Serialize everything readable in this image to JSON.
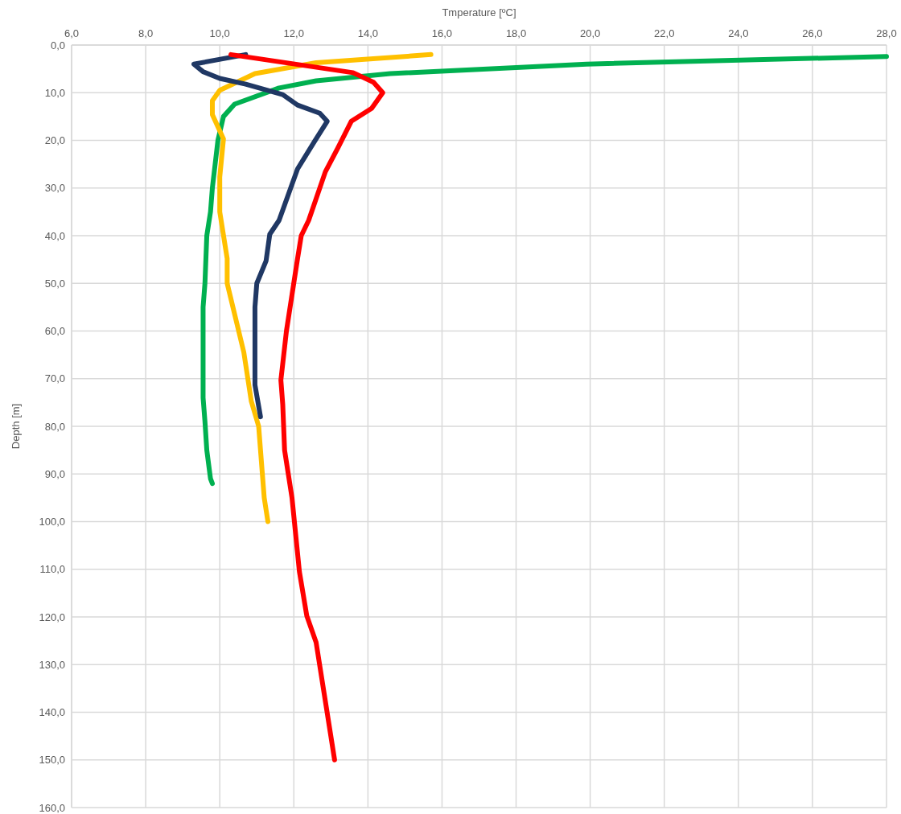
{
  "chart_data": {
    "type": "line",
    "xlabel": "Tmperature [ºC]",
    "ylabel": "Depth [m]",
    "grid": true,
    "line_style": "solid",
    "xlim": [
      6,
      28
    ],
    "xticks": [
      {
        "value": 6,
        "label": "6,0"
      },
      {
        "value": 8,
        "label": "8,0"
      },
      {
        "value": 10,
        "label": "10,0"
      },
      {
        "value": 12,
        "label": "12,0"
      },
      {
        "value": 14,
        "label": "14,0"
      },
      {
        "value": 16,
        "label": "16,0"
      },
      {
        "value": 18,
        "label": "18,0"
      },
      {
        "value": 20,
        "label": "20,0"
      },
      {
        "value": 22,
        "label": "22,0"
      },
      {
        "value": 24,
        "label": "24,0"
      },
      {
        "value": 26,
        "label": "26,0"
      },
      {
        "value": 28,
        "label": "28,0"
      }
    ],
    "ylim": [
      160,
      0
    ],
    "yticks": [
      {
        "value": 0,
        "label": "0,0"
      },
      {
        "value": 10,
        "label": "10,0"
      },
      {
        "value": 20,
        "label": "20,0"
      },
      {
        "value": 30,
        "label": "30,0"
      },
      {
        "value": 40,
        "label": "40,0"
      },
      {
        "value": 50,
        "label": "50,0"
      },
      {
        "value": 60,
        "label": "60,0"
      },
      {
        "value": 70,
        "label": "70,0"
      },
      {
        "value": 80,
        "label": "80,0"
      },
      {
        "value": 90,
        "label": "90,0"
      },
      {
        "value": 100,
        "label": "100,0"
      },
      {
        "value": 110,
        "label": "110,0"
      },
      {
        "value": 120,
        "label": "120,0"
      },
      {
        "value": 130,
        "label": "130,0"
      },
      {
        "value": 140,
        "label": "140,0"
      },
      {
        "value": 150,
        "label": "150,0"
      },
      {
        "value": 160,
        "label": "160,0"
      }
    ],
    "series": [
      {
        "color": "#00b050",
        "x": [
          28,
          19.9,
          14.6,
          12.6,
          11.6,
          10.4,
          10.1,
          9.95,
          9.8,
          9.75,
          9.65,
          9.6,
          9.55,
          9.55,
          9.6,
          9.65,
          9.75,
          9.8
        ],
        "values": [
          2.4,
          4,
          6,
          7.5,
          9,
          12.4,
          15,
          20,
          30,
          35,
          40,
          50,
          55,
          74,
          79,
          85,
          91,
          92
        ]
      },
      {
        "color": "#ffc000",
        "x": [
          15.7,
          12.6,
          10.95,
          10,
          9.8,
          9.8,
          10.1,
          10,
          10,
          10.2,
          10.2,
          10.65,
          10.85,
          11.05,
          11.15,
          11.2,
          11.3
        ],
        "values": [
          2,
          3.7,
          6,
          9.5,
          11.7,
          14.6,
          19.7,
          27.7,
          35,
          44.8,
          50,
          64.5,
          74.7,
          80,
          90,
          95,
          100
        ]
      },
      {
        "color": "#203864",
        "x": [
          10.7,
          9.3,
          9.55,
          10,
          10.7,
          11.7,
          12.1,
          12.7,
          12.9,
          12.55,
          12.1,
          11.6,
          11.35,
          11.25,
          11,
          10.95,
          10.95,
          11.1
        ],
        "values": [
          2,
          4,
          5.6,
          7,
          8.2,
          10.4,
          12.6,
          14.3,
          16,
          20.3,
          26,
          36.8,
          39.7,
          45.3,
          50,
          55,
          71.3,
          78
        ]
      },
      {
        "color": "#ff0000",
        "x": [
          10.3,
          13.6,
          14.15,
          14.4,
          14.1,
          13.55,
          13.2,
          12.85,
          12.4,
          12.2,
          12.1,
          11.8,
          11.65,
          11.7,
          11.75,
          11.85,
          11.95,
          12.15,
          12.35,
          12.6,
          13.1
        ],
        "values": [
          2,
          5.8,
          7.8,
          10,
          13.3,
          16,
          21.4,
          26.6,
          36.8,
          40,
          44.8,
          60,
          70.3,
          75.4,
          85,
          90,
          95,
          110.5,
          119.8,
          125.3,
          150
        ]
      }
    ]
  }
}
